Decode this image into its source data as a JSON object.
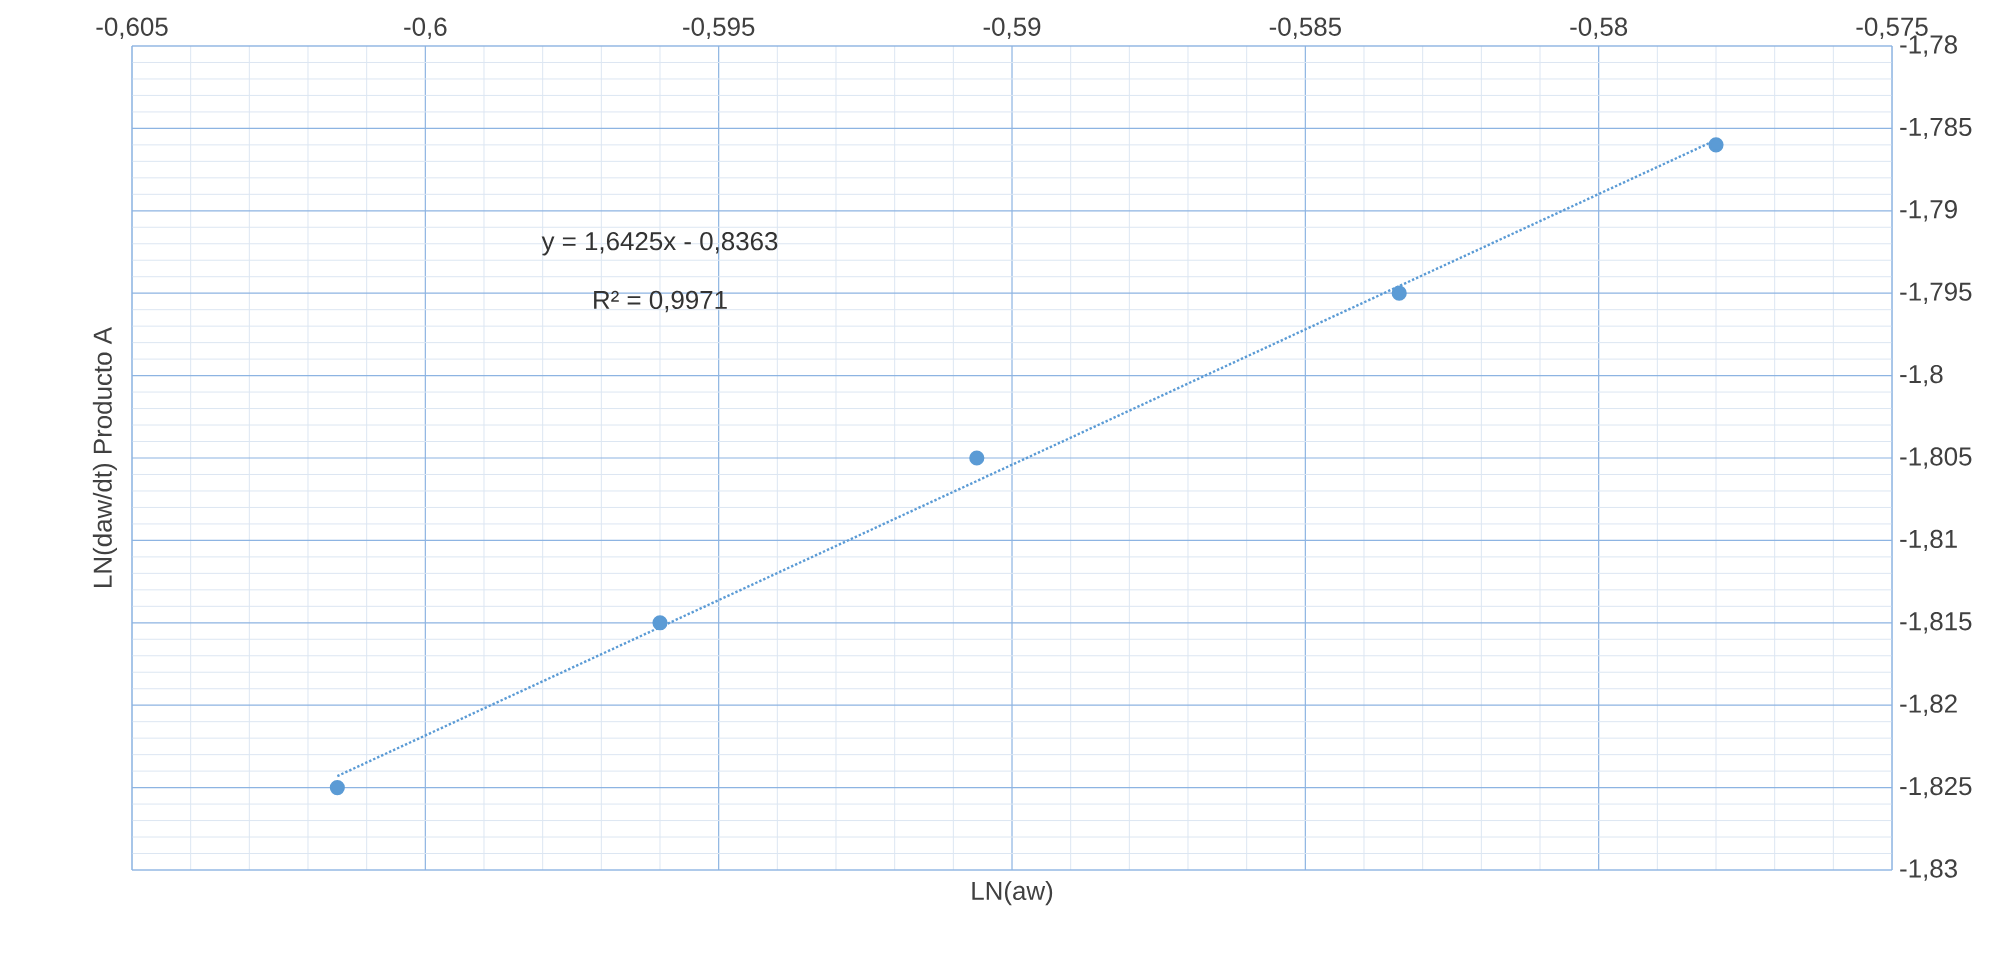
{
  "chart_data": {
    "type": "scatter",
    "xlabel": "LN(aw)",
    "ylabel": "LN(daw/dt) Producto A",
    "annotations": [
      "y = 1,6425x - 0,8363",
      "R² = 0,9971"
    ],
    "xlim": [
      -0.605,
      -0.575
    ],
    "ylim": [
      -1.83,
      -1.78
    ],
    "xticks": [
      {
        "value": -0.605,
        "label": "-0,605"
      },
      {
        "value": -0.6,
        "label": "-0,6"
      },
      {
        "value": -0.595,
        "label": "-0,595"
      },
      {
        "value": -0.59,
        "label": "-0,59"
      },
      {
        "value": -0.585,
        "label": "-0,585"
      },
      {
        "value": -0.58,
        "label": "-0,58"
      },
      {
        "value": -0.575,
        "label": "-0,575"
      }
    ],
    "yticks": [
      {
        "value": -1.78,
        "label": "-1,78"
      },
      {
        "value": -1.785,
        "label": "-1,785"
      },
      {
        "value": -1.79,
        "label": "-1,79"
      },
      {
        "value": -1.795,
        "label": "-1,795"
      },
      {
        "value": -1.8,
        "label": "-1,8"
      },
      {
        "value": -1.805,
        "label": "-1,805"
      },
      {
        "value": -1.81,
        "label": "-1,81"
      },
      {
        "value": -1.815,
        "label": "-1,815"
      },
      {
        "value": -1.82,
        "label": "-1,82"
      },
      {
        "value": -1.825,
        "label": "-1,825"
      },
      {
        "value": -1.83,
        "label": "-1,83"
      }
    ],
    "grid": true,
    "series": [
      {
        "type": "scatter",
        "color": "#5b9bd5",
        "marker": "circle",
        "x": [
          -0.6015,
          -0.596,
          -0.5906,
          -0.5834,
          -0.578
        ],
        "values": [
          -1.825,
          -1.815,
          -1.805,
          -1.795,
          -1.786
        ]
      },
      {
        "type": "line",
        "color": "#5b9bd5",
        "marker": "none",
        "line_style": "dotted",
        "x": [
          -0.6015,
          -0.578
        ],
        "values": [
          -1.8243,
          -1.7857
        ]
      }
    ]
  }
}
